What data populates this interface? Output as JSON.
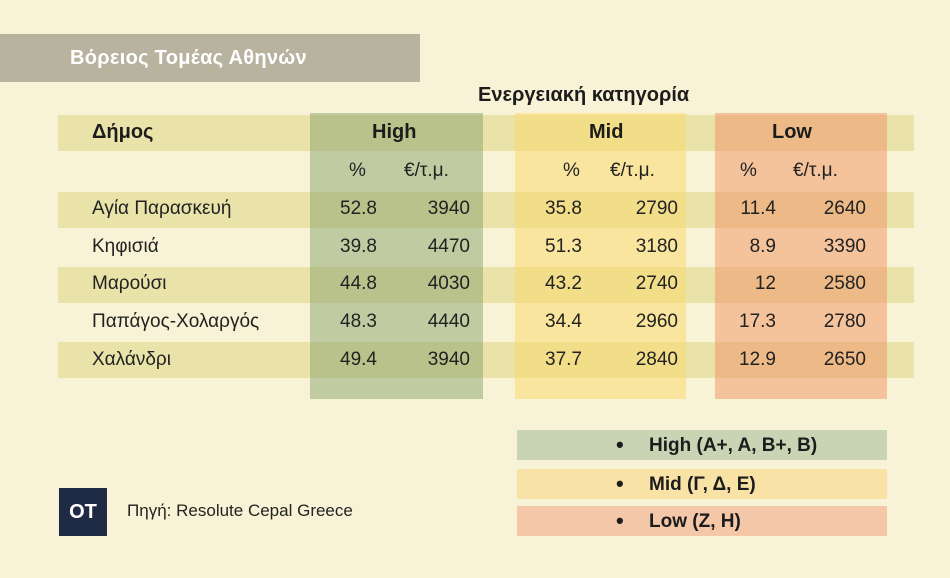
{
  "title": "Βόρειος Τομέας Αθηνών",
  "chart_data": {
    "type": "table",
    "group_label": "Ενεργειακή κατηγορία",
    "row_header": "Δήμος",
    "groups": [
      "High",
      "Mid",
      "Low"
    ],
    "subheaders": [
      "%",
      "€/τ.μ."
    ],
    "rows": [
      {
        "name": "Αγία Παρασκευή",
        "values": [
          "52.8",
          "3940",
          "35.8",
          "2790",
          "11.4",
          "2640"
        ]
      },
      {
        "name": "Κηφισιά",
        "values": [
          "39.8",
          "4470",
          "51.3",
          "3180",
          "8.9",
          "3390"
        ]
      },
      {
        "name": "Μαρούσι",
        "values": [
          "44.8",
          "4030",
          "43.2",
          "2740",
          "12",
          "2580"
        ]
      },
      {
        "name": "Παπάγος-Χολαργός",
        "values": [
          "48.3",
          "4440",
          "34.4",
          "2960",
          "17.3",
          "2780"
        ]
      },
      {
        "name": "Χαλάνδρι",
        "values": [
          "49.4",
          "3940",
          "37.7",
          "2840",
          "12.9",
          "2650"
        ]
      }
    ],
    "colors": {
      "high": "#a9b98f",
      "mid": "#f6d98a",
      "low": "#f0a882"
    }
  },
  "legend": [
    {
      "bullet": "•",
      "text": "High (A+, A, B+, B)"
    },
    {
      "bullet": "•",
      "text": "Mid (Γ, Δ, Ε)"
    },
    {
      "bullet": "•",
      "text": "Low (Z, H)"
    }
  ],
  "logo": "OT",
  "source": "Πηγή: Resolute Cepal Greece"
}
